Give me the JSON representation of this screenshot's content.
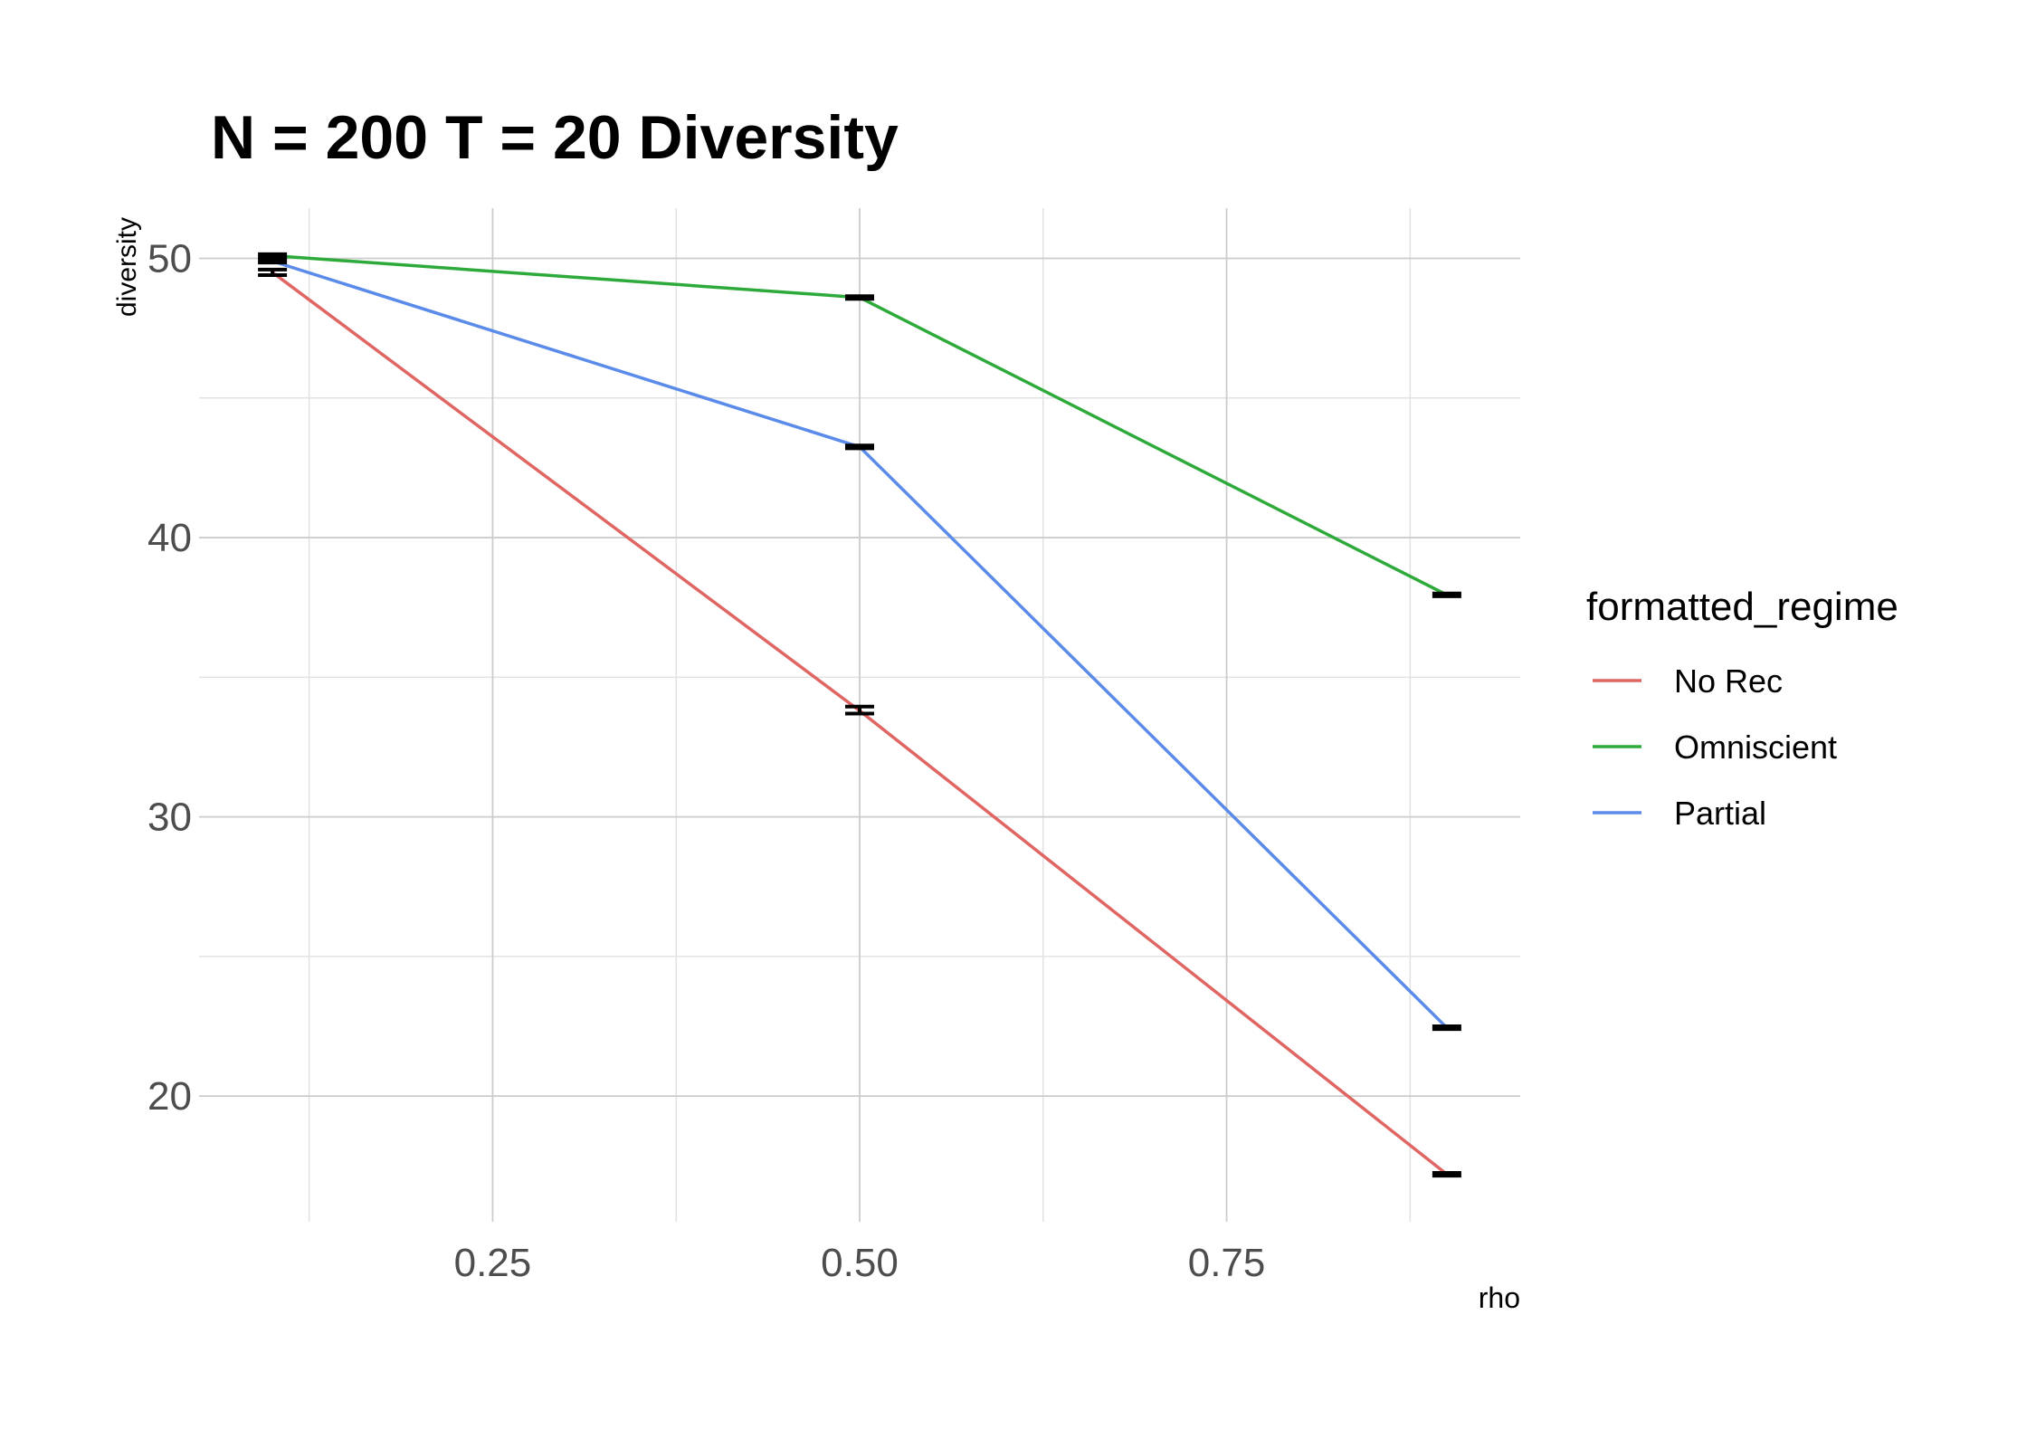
{
  "chart_data": {
    "type": "line",
    "title": "N = 200 T = 20 Diversity",
    "xlabel": "rho",
    "ylabel": "diversity",
    "xlim": [
      0.05,
      0.95
    ],
    "ylim": [
      15.5,
      51.8
    ],
    "x_ticks": [
      0.25,
      0.5,
      0.75
    ],
    "x_tick_labels": [
      "0.25",
      "0.50",
      "0.75"
    ],
    "y_ticks": [
      20,
      30,
      40,
      50
    ],
    "y_tick_labels": [
      "20",
      "30",
      "40",
      "50"
    ],
    "grid": true,
    "legend_title": "formatted_regime",
    "legend_position": "right",
    "x": [
      0.1,
      0.5,
      0.9
    ],
    "series": [
      {
        "name": "No Rec",
        "color": "#E06663",
        "values": [
          49.5,
          33.8,
          17.2
        ],
        "error": [
          [
            49.4,
            49.6
          ],
          [
            33.7,
            33.95
          ],
          [
            17.15,
            17.25
          ]
        ]
      },
      {
        "name": "Omniscient",
        "color": "#2EAA3B",
        "values": [
          50.1,
          48.6,
          37.95
        ],
        "error": [
          [
            50.05,
            50.15
          ],
          [
            48.55,
            48.65
          ],
          [
            37.9,
            38.0
          ]
        ]
      },
      {
        "name": "Partial",
        "color": "#5B8BEA",
        "values": [
          49.9,
          43.25,
          22.45
        ],
        "error": [
          [
            49.85,
            49.95
          ],
          [
            43.2,
            43.3
          ],
          [
            22.4,
            22.5
          ]
        ]
      }
    ]
  }
}
